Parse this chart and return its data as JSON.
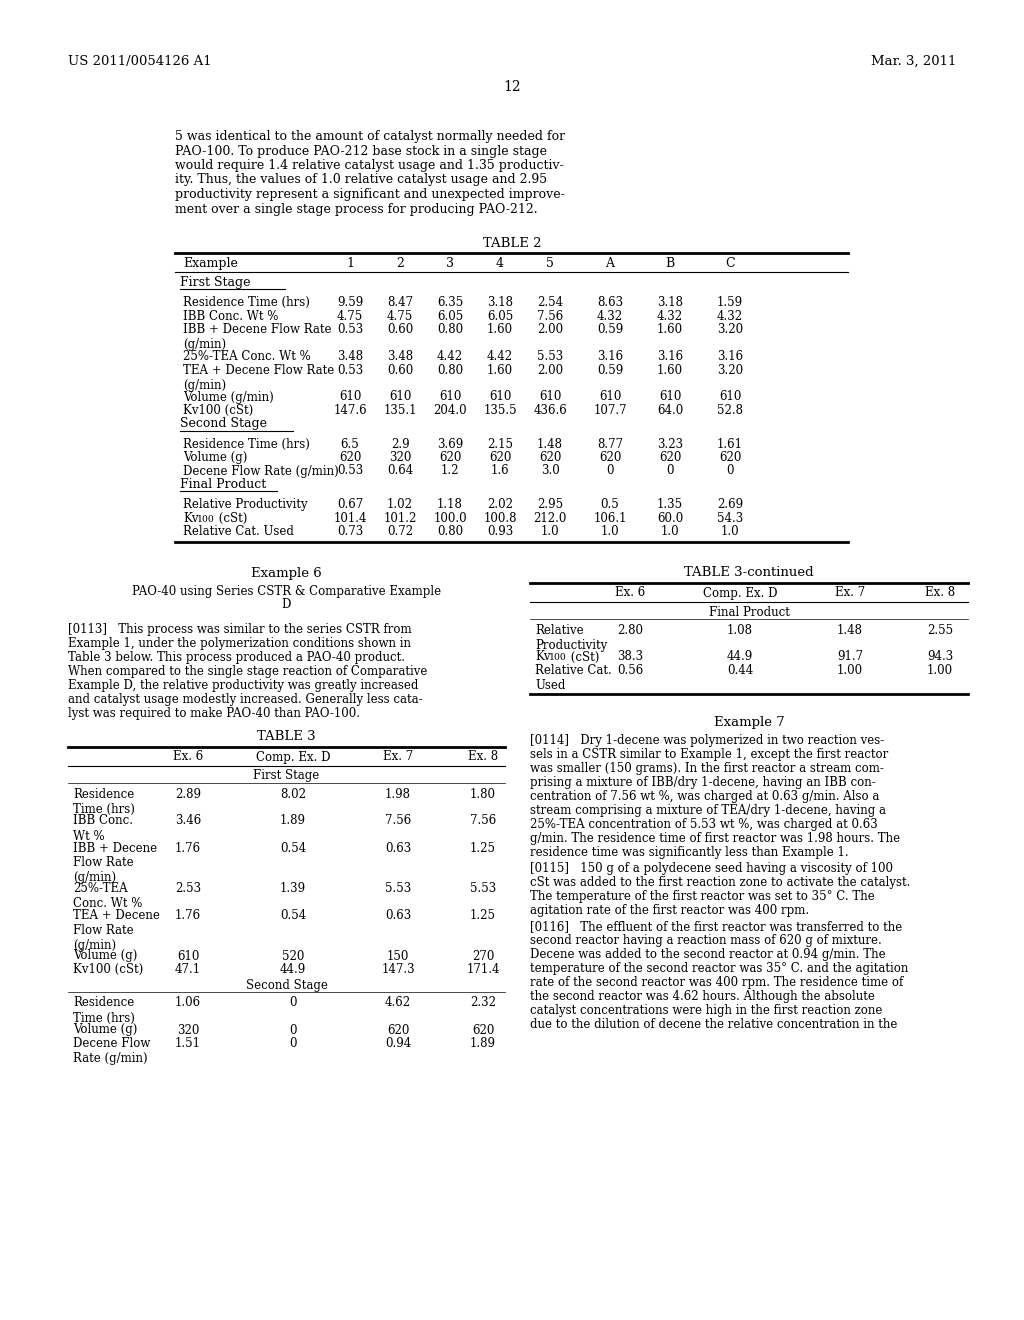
{
  "page_header_left": "US 2011/0054126 A1",
  "page_header_right": "Mar. 3, 2011",
  "page_number": "12",
  "bg_color": "#ffffff",
  "intro_lines": [
    "5 was identical to the amount of catalyst normally needed for",
    "PAO-100. To produce PAO-212 base stock in a single stage",
    "would require 1.4 relative catalyst usage and 1.35 productiv-",
    "ity. Thus, the values of 1.0 relative catalyst usage and 2.95",
    "productivity represent a significant and unexpected improve-",
    "ment over a single stage process for producing PAO-212."
  ],
  "table2_title": "TABLE 2",
  "table2_cols": [
    "Example",
    "1",
    "2",
    "3",
    "4",
    "5",
    "A",
    "B",
    "C"
  ],
  "table2_section1": "First Stage",
  "table2_rows_s1": [
    [
      "Residence Time (hrs)",
      "9.59",
      "8.47",
      "6.35",
      "3.18",
      "2.54",
      "8.63",
      "3.18",
      "1.59"
    ],
    [
      "IBB Conc. Wt %",
      "4.75",
      "4.75",
      "6.05",
      "6.05",
      "7.56",
      "4.32",
      "4.32",
      "4.32"
    ],
    [
      "IBB + Decene Flow Rate\n(g/min)",
      "0.53",
      "0.60",
      "0.80",
      "1.60",
      "2.00",
      "0.59",
      "1.60",
      "3.20"
    ],
    [
      "25%-TEA Conc. Wt %",
      "3.48",
      "3.48",
      "4.42",
      "4.42",
      "5.53",
      "3.16",
      "3.16",
      "3.16"
    ],
    [
      "TEA + Decene Flow Rate\n(g/min)",
      "0.53",
      "0.60",
      "0.80",
      "1.60",
      "2.00",
      "0.59",
      "1.60",
      "3.20"
    ],
    [
      "Volume (g/min)",
      "610",
      "610",
      "610",
      "610",
      "610",
      "610",
      "610",
      "610"
    ],
    [
      "Kv100 (cSt)",
      "147.6",
      "135.1",
      "204.0",
      "135.5",
      "436.6",
      "107.7",
      "64.0",
      "52.8"
    ]
  ],
  "table2_section2": "Second Stage",
  "table2_rows_s2": [
    [
      "Residence Time (hrs)",
      "6.5",
      "2.9",
      "3.69",
      "2.15",
      "1.48",
      "8.77",
      "3.23",
      "1.61"
    ],
    [
      "Volume (g)",
      "620",
      "320",
      "620",
      "620",
      "620",
      "620",
      "620",
      "620"
    ],
    [
      "Decene Flow Rate (g/min)",
      "0.53",
      "0.64",
      "1.2",
      "1.6",
      "3.0",
      "0",
      "0",
      "0"
    ]
  ],
  "table2_section3": "Final Product",
  "table2_rows_s3": [
    [
      "Relative Productivity",
      "0.67",
      "1.02",
      "1.18",
      "2.02",
      "2.95",
      "0.5",
      "1.35",
      "2.69"
    ],
    [
      "Kv100sub (cSt)",
      "101.4",
      "101.2",
      "100.0",
      "100.8",
      "212.0",
      "106.1",
      "60.0",
      "54.3"
    ],
    [
      "Relative Cat. Used",
      "0.73",
      "0.72",
      "0.80",
      "0.93",
      "1.0",
      "1.0",
      "1.0",
      "1.0"
    ]
  ],
  "example6_title": "Example 6",
  "example6_subtitle_lines": [
    "PAO-40 using Series CSTR & Comparative Example",
    "D"
  ],
  "example6_para_lines": [
    "[0113]   This process was similar to the series CSTR from",
    "Example 1, under the polymerization conditions shown in",
    "Table 3 below. This process produced a PAO-40 product.",
    "When compared to the single stage reaction of Comparative",
    "Example D, the relative productivity was greatly increased",
    "and catalyst usage modestly increased. Generally less cata-",
    "lyst was required to make PAO-40 than PAO-100."
  ],
  "table3_title": "TABLE 3",
  "table3_cols": [
    "",
    "Ex. 6",
    "Comp. Ex. D",
    "Ex. 7",
    "Ex. 8"
  ],
  "table3_section1": "First Stage",
  "table3_rows_s1": [
    [
      "Residence\nTime (hrs)",
      "2.89",
      "8.02",
      "1.98",
      "1.80"
    ],
    [
      "IBB Conc.\nWt %",
      "3.46",
      "1.89",
      "7.56",
      "7.56"
    ],
    [
      "IBB + Decene\nFlow Rate\n(g/min)",
      "1.76",
      "0.54",
      "0.63",
      "1.25"
    ],
    [
      "25%-TEA\nConc. Wt %",
      "2.53",
      "1.39",
      "5.53",
      "5.53"
    ],
    [
      "TEA + Decene\nFlow Rate\n(g/min)",
      "1.76",
      "0.54",
      "0.63",
      "1.25"
    ],
    [
      "Volume (g)",
      "610",
      "520",
      "150",
      "270"
    ],
    [
      "Kv100 (cSt)",
      "47.1",
      "44.9",
      "147.3",
      "171.4"
    ]
  ],
  "table3_section2": "Second Stage",
  "table3_rows_s2": [
    [
      "Residence\nTime (hrs)",
      "1.06",
      "0",
      "4.62",
      "2.32"
    ],
    [
      "Volume (g)",
      "320",
      "0",
      "620",
      "620"
    ],
    [
      "Decene Flow\nRate (g/min)",
      "1.51",
      "0",
      "0.94",
      "1.89"
    ]
  ],
  "table3cont_title": "TABLE 3-continued",
  "table3cont_cols": [
    "",
    "Ex. 6",
    "Comp. Ex. D",
    "Ex. 7",
    "Ex. 8"
  ],
  "table3cont_section": "Final Product",
  "table3cont_rows": [
    [
      "Relative\nProductivity",
      "2.80",
      "1.08",
      "1.48",
      "2.55"
    ],
    [
      "Kv100sub (cSt)",
      "38.3",
      "44.9",
      "91.7",
      "94.3"
    ],
    [
      "Relative Cat.\nUsed",
      "0.56",
      "0.44",
      "1.00",
      "1.00"
    ]
  ],
  "example7_title": "Example 7",
  "example7_para_lines": [
    "[0114]   Dry 1-decene was polymerized in two reaction ves-",
    "sels in a CSTR similar to Example 1, except the first reactor",
    "was smaller (150 grams). In the first reactor a stream com-",
    "prising a mixture of IBB/dry 1-decene, having an IBB con-",
    "centration of 7.56 wt %, was charged at 0.63 g/min. Also a",
    "stream comprising a mixture of TEA/dry 1-decene, having a",
    "25%-TEA concentration of 5.53 wt %, was charged at 0.63",
    "g/min. The residence time of first reactor was 1.98 hours. The",
    "residence time was significantly less than Example 1."
  ],
  "example7_para2_lines": [
    "[0115]   150 g of a polydecene seed having a viscosity of 100",
    "cSt was added to the first reaction zone to activate the catalyst.",
    "The temperature of the first reactor was set to 35° C. The",
    "agitation rate of the first reactor was 400 rpm."
  ],
  "example7_para3_lines": [
    "[0116]   The effluent of the first reactor was transferred to the",
    "second reactor having a reaction mass of 620 g of mixture.",
    "Decene was added to the second reactor at 0.94 g/min. The",
    "temperature of the second reactor was 35° C. and the agitation",
    "rate of the second reactor was 400 rpm. The residence time of",
    "the second reactor was 4.62 hours. Although the absolute",
    "catalyst concentrations were high in the first reaction zone",
    "due to the dilution of decene the relative concentration in the"
  ]
}
